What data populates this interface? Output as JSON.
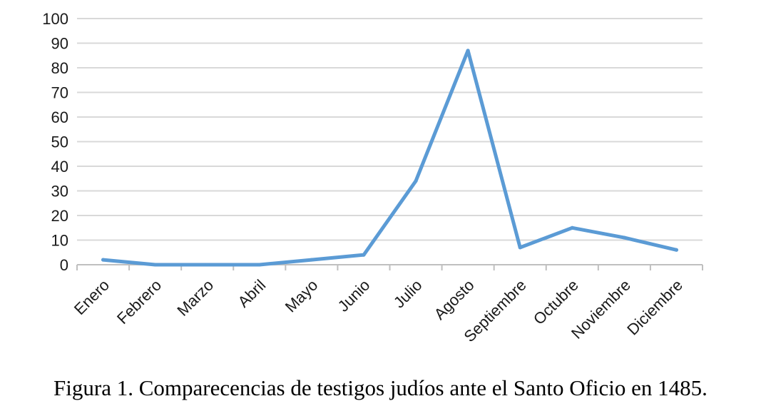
{
  "chart_data": {
    "type": "line",
    "categories": [
      "Enero",
      "Febrero",
      "Marzo",
      "Abril",
      "Mayo",
      "Junio",
      "Julio",
      "Agosto",
      "Septiembre",
      "Octubre",
      "Noviembre",
      "Diciembre"
    ],
    "series": [
      {
        "values": [
          2,
          0,
          0,
          0,
          2,
          4,
          34,
          87,
          7,
          15,
          11,
          6
        ]
      }
    ],
    "ylim": [
      0,
      100
    ],
    "yticks": [
      0,
      10,
      20,
      30,
      40,
      50,
      60,
      70,
      80,
      90,
      100
    ],
    "grid": true,
    "line_color": "#5b9bd5"
  },
  "caption": "Figura 1. Comparecencias de testigos judíos ante el Santo Oficio en 1485."
}
